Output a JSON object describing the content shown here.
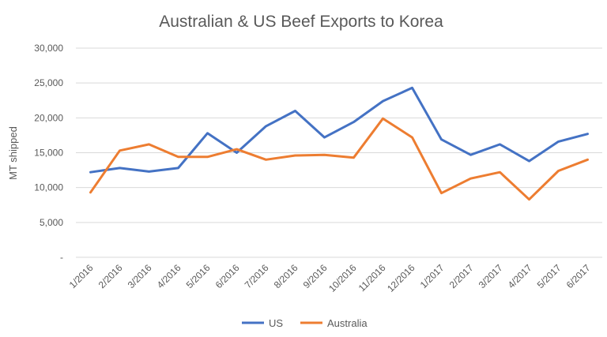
{
  "chart_data": {
    "type": "line",
    "title": "Australian & US Beef Exports to Korea",
    "xlabel": "",
    "ylabel": "MT shipped",
    "categories": [
      "1/2016",
      "2/2016",
      "3/2016",
      "4/2016",
      "5/2016",
      "6/2016",
      "7/2016",
      "8/2016",
      "9/2016",
      "10/2016",
      "11/2016",
      "12/2016",
      "1/2017",
      "2/2017",
      "3/2017",
      "4/2017",
      "5/2017",
      "6/2017"
    ],
    "y_ticks": [
      "-",
      "5,000",
      "10,000",
      "15,000",
      "20,000",
      "25,000",
      "30,000"
    ],
    "ylim": [
      0,
      30000
    ],
    "grid": true,
    "legend_position": "bottom",
    "series": [
      {
        "name": "US",
        "color": "#4472c4",
        "values": [
          12200,
          12800,
          12300,
          12800,
          17800,
          15000,
          18800,
          21000,
          17200,
          19400,
          22400,
          24300,
          16900,
          14700,
          16200,
          13800,
          16600,
          17700
        ]
      },
      {
        "name": "Australia",
        "color": "#ed7d31",
        "values": [
          9300,
          15300,
          16200,
          14400,
          14400,
          15500,
          14000,
          14600,
          14700,
          14300,
          19900,
          17200,
          9200,
          11300,
          12200,
          8300,
          12400,
          14000
        ]
      }
    ]
  }
}
